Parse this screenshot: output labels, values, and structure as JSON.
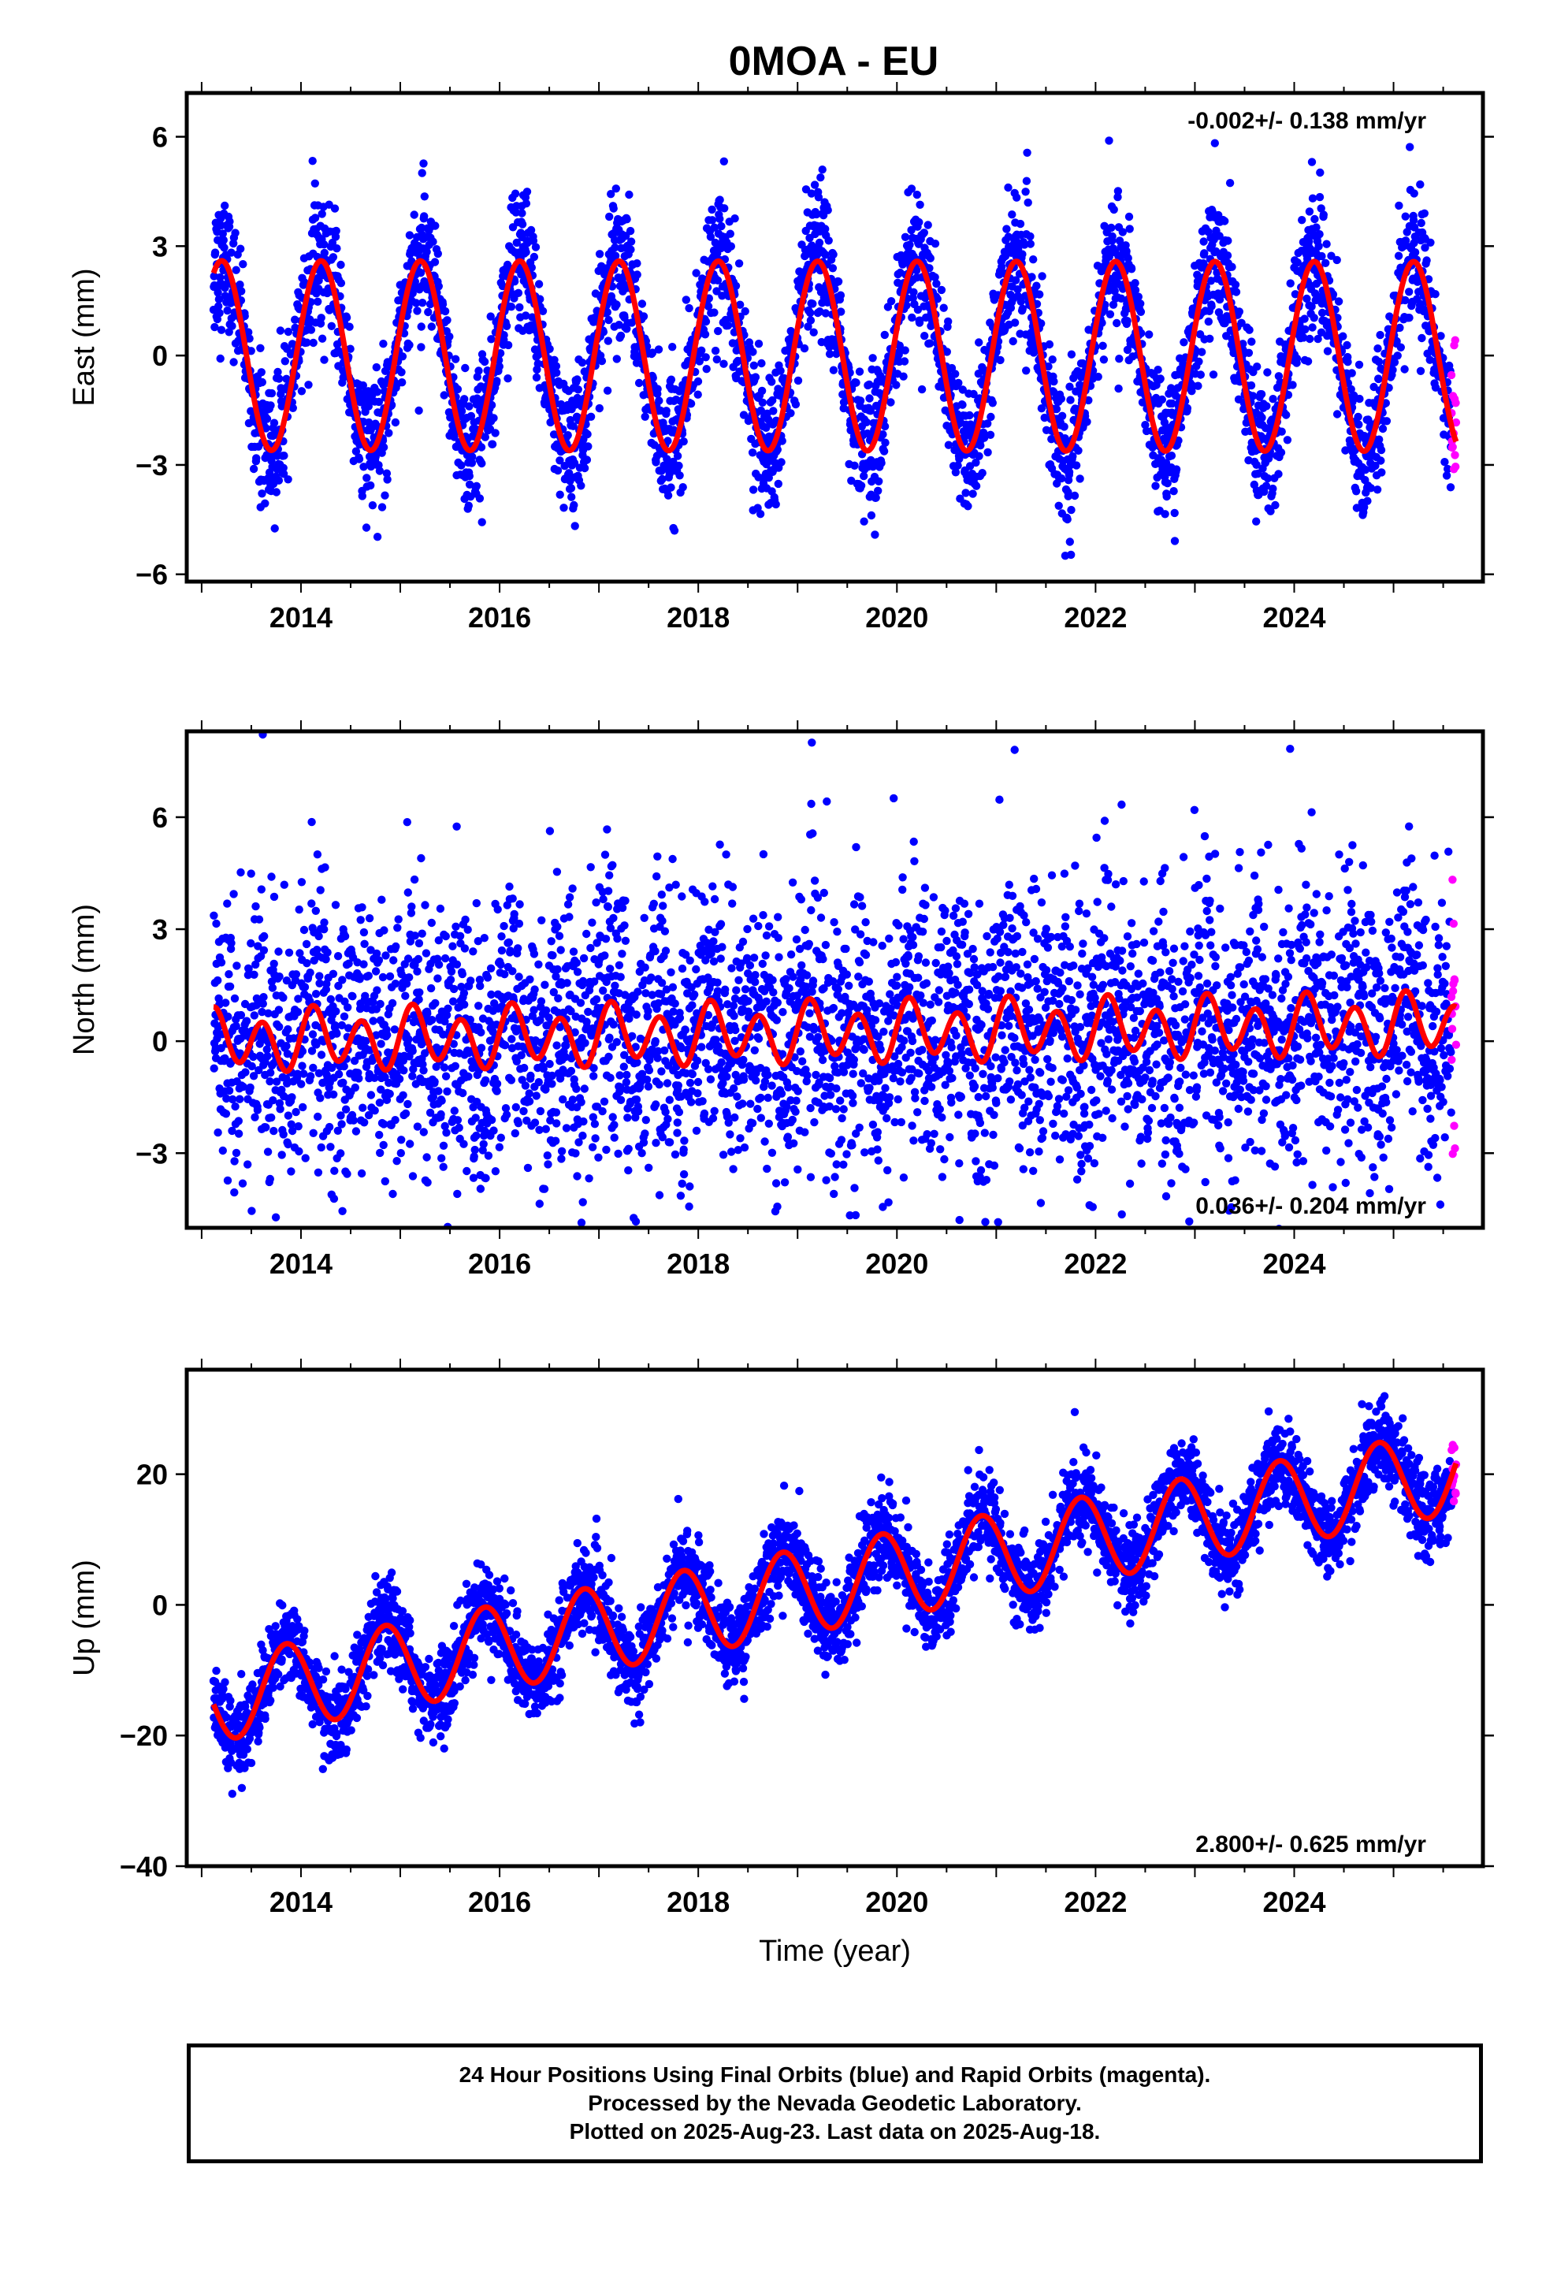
{
  "title": "0MOA - EU",
  "colors": {
    "final": "#0000ff",
    "rapid": "#ff00ff",
    "model": "#ff0000"
  },
  "chart_data": [
    {
      "type": "scatter",
      "panel": "east",
      "ylabel": "East (mm)",
      "xlabel": "",
      "xlim": [
        2012.85,
        2025.9
      ],
      "ylim": [
        -6.2,
        7.2
      ],
      "xticks": [
        2014,
        2016,
        2018,
        2020,
        2022,
        2024
      ],
      "yticks": [
        -6,
        -3,
        0,
        3,
        6
      ],
      "ytick_labels": [
        "−6",
        "−3",
        "0",
        "3",
        "6"
      ],
      "rate": "-0.002+/- 0.138 mm/yr",
      "rate_position": "top-right",
      "data_start": 2013.12,
      "data_end": 2025.63,
      "rapid_start": 2025.58,
      "model": {
        "offset": 0.0,
        "trend_mm_yr": -0.002,
        "annual_amp": 2.6,
        "annual_phase": 0.3,
        "semiannual_amp": 0.0,
        "semiannual_phase": 0.0
      },
      "noise_sd": 0.85,
      "noise_scales_with_season": true
    },
    {
      "type": "scatter",
      "panel": "north",
      "ylabel": "North (mm)",
      "xlabel": "",
      "xlim": [
        2012.85,
        2025.9
      ],
      "ylim": [
        -5.0,
        8.3
      ],
      "xticks": [
        2014,
        2016,
        2018,
        2020,
        2022,
        2024
      ],
      "yticks": [
        -3,
        0,
        3,
        6
      ],
      "ytick_labels": [
        "−3",
        "0",
        "3",
        "6"
      ],
      "rate": "0.036+/- 0.204 mm/yr",
      "rate_position": "bottom-right",
      "data_start": 2013.12,
      "data_end": 2025.63,
      "rapid_start": 2025.58,
      "model": {
        "offset": 0.0,
        "trend_mm_yr": 0.036,
        "annual_amp": 0.25,
        "annual_phase": 0.3,
        "semiannual_amp": 0.7,
        "semiannual_phase": 0.1
      },
      "noise_sd": 1.8,
      "noise_scales_with_season": false
    },
    {
      "type": "scatter",
      "panel": "up",
      "ylabel": "Up (mm)",
      "xlabel": "Time (year)",
      "xlim": [
        2012.85,
        2025.9
      ],
      "ylim": [
        -40,
        36
      ],
      "xticks": [
        2014,
        2016,
        2018,
        2020,
        2022,
        2024
      ],
      "yticks": [
        -40,
        -20,
        0,
        20
      ],
      "ytick_labels": [
        "−40",
        "−20",
        "0",
        "20"
      ],
      "rate": "2.800+/- 0.625 mm/yr",
      "rate_position": "bottom-right",
      "data_start": 2013.12,
      "data_end": 2025.63,
      "rapid_start": 2025.58,
      "model": {
        "offset": -14.5,
        "trend_mm_yr": 2.8,
        "annual_amp": 6.5,
        "annual_phase": 2.5,
        "semiannual_amp": 0.0,
        "semiannual_phase": 0.0
      },
      "noise_sd": 3.2,
      "noise_scales_with_season": false
    }
  ],
  "footer": {
    "line1": "24 Hour Positions Using Final Orbits (blue) and Rapid Orbits (magenta).",
    "line2": "Processed by the Nevada Geodetic Laboratory.",
    "line3": "Plotted on 2025-Aug-23. Last data on 2025-Aug-18."
  }
}
